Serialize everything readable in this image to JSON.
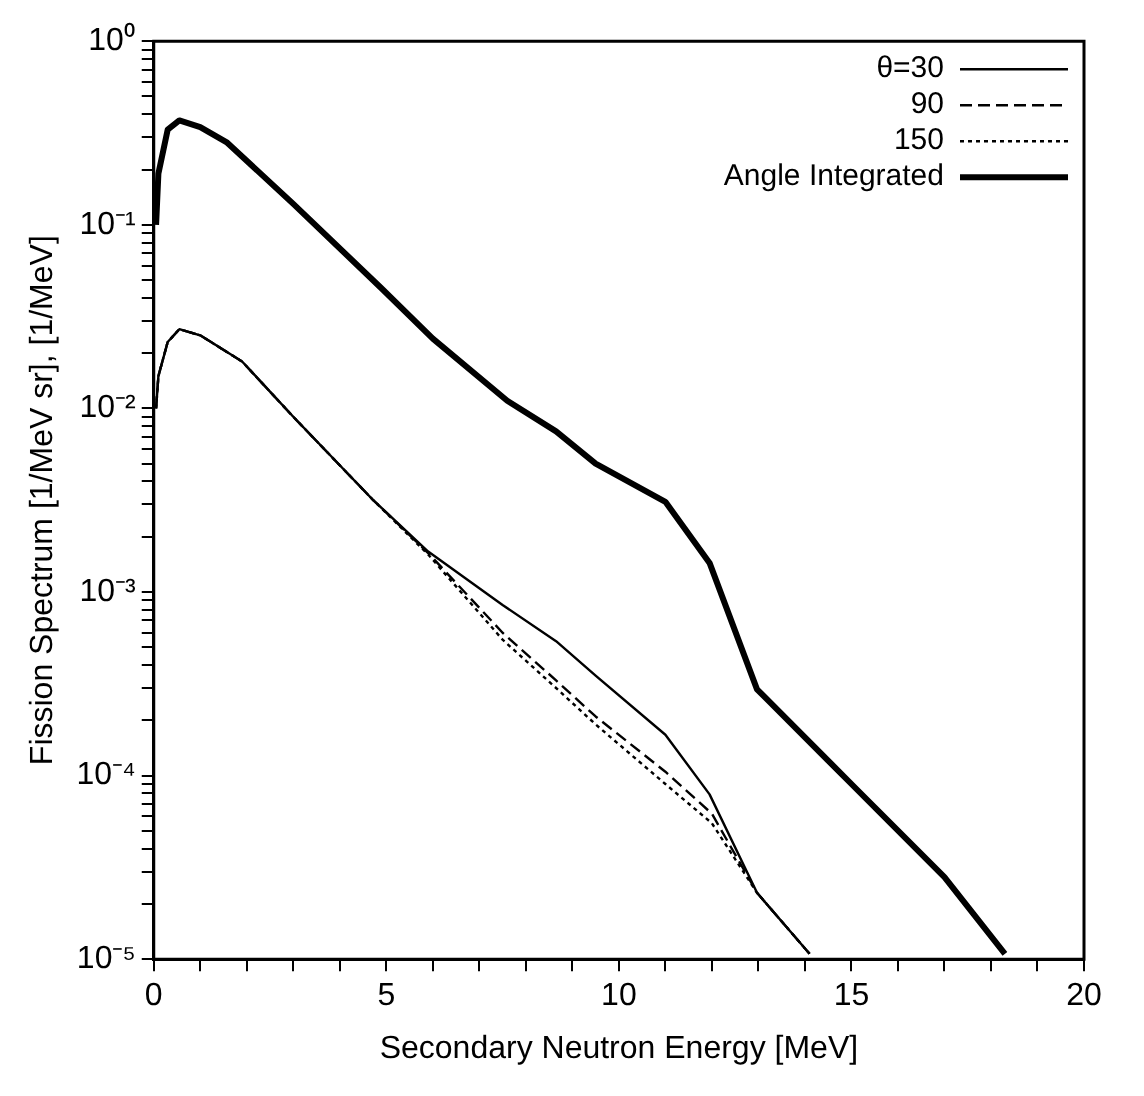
{
  "chart_data": {
    "type": "line",
    "xlabel": "Secondary Neutron Energy [MeV]",
    "ylabel": "Fission Spectrum [1/MeV sr], [1/MeV]",
    "log": "y",
    "grid": false,
    "legend": "top right",
    "marker": "none",
    "xlim": [
      0,
      20
    ],
    "ylim": [
      1e-05,
      1
    ],
    "xticks": [
      0,
      {
        "value": 1,
        "label": null
      },
      {
        "value": 2,
        "label": null
      },
      {
        "value": 3,
        "label": null
      },
      {
        "value": 4,
        "label": null
      },
      5,
      {
        "value": 6,
        "label": null
      },
      {
        "value": 7,
        "label": null
      },
      {
        "value": 8,
        "label": null
      },
      {
        "value": 9,
        "label": null
      },
      10,
      {
        "value": 11,
        "label": null
      },
      {
        "value": 12,
        "label": null
      },
      {
        "value": 13,
        "label": null
      },
      {
        "value": 14,
        "label": null
      },
      15,
      {
        "value": 16,
        "label": null
      },
      {
        "value": 17,
        "label": null
      },
      {
        "value": 18,
        "label": null
      },
      {
        "value": 19,
        "label": null
      },
      20
    ],
    "yticks": [
      {
        "value": 1e-05,
        "label": "10⁻⁵"
      },
      {
        "value": 2e-05,
        "label": null
      },
      {
        "value": 3e-05,
        "label": null
      },
      {
        "value": 4e-05,
        "label": null
      },
      {
        "value": 5e-05,
        "label": null
      },
      {
        "value": 6e-05,
        "label": null
      },
      {
        "value": 7e-05,
        "label": null
      },
      {
        "value": 8e-05,
        "label": null
      },
      {
        "value": 9e-05,
        "label": null
      },
      {
        "value": 0.0001,
        "label": "10⁻⁴"
      },
      {
        "value": 0.0002,
        "label": null
      },
      {
        "value": 0.0003,
        "label": null
      },
      {
        "value": 0.0004,
        "label": null
      },
      {
        "value": 0.0005,
        "label": null
      },
      {
        "value": 0.0006,
        "label": null
      },
      {
        "value": 0.0007,
        "label": null
      },
      {
        "value": 0.0008,
        "label": null
      },
      {
        "value": 0.0009,
        "label": null
      },
      {
        "value": 0.001,
        "label": "10⁻³"
      },
      {
        "value": 0.002,
        "label": null
      },
      {
        "value": 0.003,
        "label": null
      },
      {
        "value": 0.004,
        "label": null
      },
      {
        "value": 0.005,
        "label": null
      },
      {
        "value": 0.006,
        "label": null
      },
      {
        "value": 0.007,
        "label": null
      },
      {
        "value": 0.008,
        "label": null
      },
      {
        "value": 0.009,
        "label": null
      },
      {
        "value": 0.01,
        "label": "10⁻²"
      },
      {
        "value": 0.02,
        "label": null
      },
      {
        "value": 0.03,
        "label": null
      },
      {
        "value": 0.04,
        "label": null
      },
      {
        "value": 0.05,
        "label": null
      },
      {
        "value": 0.06,
        "label": null
      },
      {
        "value": 0.07,
        "label": null
      },
      {
        "value": 0.08,
        "label": null
      },
      {
        "value": 0.09,
        "label": null
      },
      {
        "value": 0.1,
        "label": "10⁻¹"
      },
      {
        "value": 0.2,
        "label": null
      },
      {
        "value": 0.3,
        "label": null
      },
      {
        "value": 0.4,
        "label": null
      },
      {
        "value": 0.5,
        "label": null
      },
      {
        "value": 0.6,
        "label": null
      },
      {
        "value": 0.7,
        "label": null
      },
      {
        "value": 0.8,
        "label": null
      },
      {
        "value": 0.9,
        "label": null
      },
      {
        "value": 1,
        "label": "10⁰"
      }
    ],
    "series": [
      {
        "name": "θ=30",
        "color": "#000000",
        "line_style": "solid",
        "x": [
          0.05,
          0.1,
          0.3,
          0.55,
          1,
          1.9,
          3,
          4.7,
          5.9,
          7.5,
          8.65,
          9.5,
          11,
          11.95,
          12.97,
          14.1
        ],
        "values": [
          0.01,
          0.015,
          0.023,
          0.027,
          0.025,
          0.018,
          0.009,
          0.0032,
          0.00166,
          0.00085,
          0.00054,
          0.00035,
          0.000167,
          7.9e-05,
          2.3e-05,
          1.07e-05
        ]
      },
      {
        "name": "90",
        "color": "#000000",
        "line_style": "dashed",
        "x": [
          0.05,
          0.1,
          0.3,
          0.55,
          1,
          1.9,
          3,
          4.7,
          5.9,
          7.5,
          8.65,
          9.5,
          11,
          12,
          12.97,
          14.1
        ],
        "values": [
          0.01,
          0.015,
          0.023,
          0.027,
          0.025,
          0.018,
          0.009,
          0.0032,
          0.00163,
          0.0006,
          0.00033,
          0.00021,
          0.000105,
          6.2e-05,
          2.3e-05,
          1.07e-05
        ]
      },
      {
        "name": "150",
        "color": "#000000",
        "line_style": "dotted",
        "x": [
          0.05,
          0.1,
          0.3,
          0.55,
          1,
          1.9,
          3,
          4.7,
          5.9,
          7.5,
          8.65,
          9.5,
          11,
          12,
          12.97,
          14.1
        ],
        "values": [
          0.01,
          0.015,
          0.023,
          0.027,
          0.025,
          0.018,
          0.009,
          0.0032,
          0.0016,
          0.00055,
          0.0003,
          0.00019,
          9e-05,
          5.5e-05,
          2.3e-05,
          1.07e-05
        ]
      },
      {
        "name": "Angle Integrated",
        "color": "#000000",
        "line_style": "solid",
        "x": [
          0.05,
          0.1,
          0.3,
          0.55,
          1,
          1.58,
          3,
          4.9,
          6,
          7.6,
          8.65,
          9.5,
          11,
          11.95,
          12.97,
          15,
          17,
          18.3
        ],
        "values": [
          0.1,
          0.19,
          0.33,
          0.37,
          0.34,
          0.28,
          0.13,
          0.045,
          0.024,
          0.011,
          0.0075,
          0.005,
          0.0031,
          0.00144,
          0.000295,
          9e-05,
          2.8e-05,
          1.07e-05
        ]
      }
    ]
  }
}
